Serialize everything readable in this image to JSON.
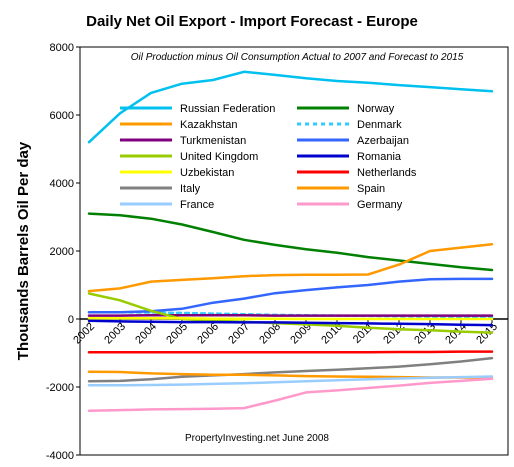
{
  "chart_data": {
    "type": "line",
    "title": "Daily Net Oil Export - Import Forecast  - Europe",
    "subtitle": "Oil Production minus Oil Consumption Actual to 2007 and Forecast to 2015",
    "ylabel": "Thousands Barrels Oil Per day",
    "xlabel": "",
    "credit": "PropertyInvesting.net      June 2008",
    "x": [
      "2002",
      "2003",
      "2004",
      "2005",
      "2006",
      "2007",
      "2008",
      "2009",
      "2010",
      "2011",
      "2012",
      "2013",
      "2014",
      "2015"
    ],
    "ylim": [
      -4000,
      8000
    ],
    "yticks": [
      "-4000",
      "-2000",
      "0",
      "2000",
      "4000",
      "6000",
      "8000"
    ],
    "grid": false,
    "legend_placement": "inside-top",
    "series": [
      {
        "name": "Russian Federation",
        "color": "#00c0f0",
        "dash": "",
        "width": 2.5,
        "values": [
          5200,
          6050,
          6650,
          6920,
          7030,
          7270,
          7180,
          7080,
          7000,
          6950,
          6880,
          6820,
          6760,
          6700
        ]
      },
      {
        "name": "Norway",
        "color": "#008000",
        "dash": "",
        "width": 2.5,
        "values": [
          3100,
          3050,
          2950,
          2780,
          2560,
          2330,
          2180,
          2050,
          1950,
          1820,
          1720,
          1620,
          1520,
          1440
        ]
      },
      {
        "name": "Kazakhstan",
        "color": "#ff9900",
        "dash": "",
        "width": 2.5,
        "values": [
          820,
          900,
          1100,
          1150,
          1200,
          1260,
          1290,
          1300,
          1300,
          1310,
          1600,
          2000,
          2100,
          2200
        ]
      },
      {
        "name": "Denmark",
        "color": "#33ccff",
        "dash": "4,4",
        "width": 2.5,
        "values": [
          200,
          200,
          190,
          180,
          160,
          140,
          120,
          110,
          100,
          90,
          80,
          70,
          60,
          50
        ]
      },
      {
        "name": "Turkmenistan",
        "color": "#800080",
        "dash": "",
        "width": 2.5,
        "values": [
          100,
          100,
          110,
          110,
          110,
          110,
          100,
          100,
          100,
          100,
          100,
          100,
          100,
          100
        ]
      },
      {
        "name": "Azerbaijan",
        "color": "#3366ff",
        "dash": "",
        "width": 2.5,
        "values": [
          200,
          200,
          230,
          300,
          480,
          600,
          760,
          850,
          930,
          1000,
          1100,
          1170,
          1180,
          1180
        ]
      },
      {
        "name": "United Kingdom",
        "color": "#99cc00",
        "dash": "",
        "width": 2.5,
        "values": [
          750,
          550,
          240,
          0,
          -50,
          -80,
          -120,
          -160,
          -200,
          -260,
          -300,
          -330,
          -370,
          -400
        ]
      },
      {
        "name": "Romania",
        "color": "#0000cc",
        "dash": "",
        "width": 2.5,
        "values": [
          -50,
          -70,
          -80,
          -90,
          -90,
          -100,
          -100,
          -110,
          -120,
          -130,
          -140,
          -150,
          -170,
          -180
        ]
      },
      {
        "name": "Uzbekistan",
        "color": "#ffff00",
        "dash": "",
        "width": 2.5,
        "values": [
          20,
          20,
          20,
          20,
          10,
          10,
          10,
          0,
          0,
          0,
          0,
          0,
          0,
          0
        ]
      },
      {
        "name": "Netherlands",
        "color": "#ff0000",
        "dash": "",
        "width": 2.5,
        "values": [
          -980,
          -980,
          -980,
          -980,
          -980,
          -980,
          -980,
          -980,
          -980,
          -980,
          -970,
          -970,
          -960,
          -960
        ]
      },
      {
        "name": "Italy",
        "color": "#808080",
        "dash": "",
        "width": 2.5,
        "values": [
          -1830,
          -1820,
          -1770,
          -1700,
          -1660,
          -1620,
          -1570,
          -1530,
          -1490,
          -1450,
          -1400,
          -1330,
          -1250,
          -1150
        ]
      },
      {
        "name": "Spain",
        "color": "#ff9900",
        "dash": "",
        "width": 2.5,
        "values": [
          -1550,
          -1560,
          -1600,
          -1620,
          -1640,
          -1640,
          -1660,
          -1680,
          -1690,
          -1700,
          -1710,
          -1720,
          -1720,
          -1730
        ]
      },
      {
        "name": "France",
        "color": "#99ccff",
        "dash": "",
        "width": 2.5,
        "values": [
          -1950,
          -1950,
          -1940,
          -1930,
          -1910,
          -1890,
          -1860,
          -1830,
          -1800,
          -1770,
          -1750,
          -1730,
          -1710,
          -1690
        ]
      },
      {
        "name": "Germany",
        "color": "#ff99cc",
        "dash": "",
        "width": 2.5,
        "values": [
          -2700,
          -2680,
          -2660,
          -2650,
          -2640,
          -2620,
          -2400,
          -2160,
          -2100,
          -2030,
          -1960,
          -1880,
          -1820,
          -1760
        ]
      }
    ]
  }
}
